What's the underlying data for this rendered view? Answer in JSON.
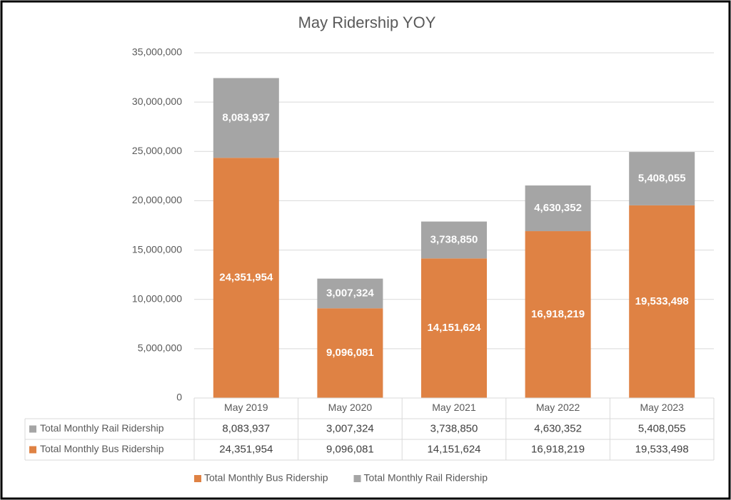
{
  "chart_data": {
    "type": "stacked_bar",
    "title": "May Ridership YOY",
    "categories": [
      "May 2019",
      "May 2020",
      "May 2021",
      "May 2022",
      "May 2023"
    ],
    "series": [
      {
        "name": "Total Monthly Bus Ridership",
        "color": "#df8244",
        "values": [
          24351954,
          9096081,
          14151624,
          16918219,
          19533498
        ],
        "value_labels": [
          "24,351,954",
          "9,096,081",
          "14,151,624",
          "16,918,219",
          "19,533,498"
        ]
      },
      {
        "name": "Total Monthly Rail Ridership",
        "color": "#a5a5a5",
        "values": [
          8083937,
          3007324,
          3738850,
          4630352,
          5408055
        ],
        "value_labels": [
          "8,083,937",
          "3,007,324",
          "3,738,850",
          "4,630,352",
          "5,408,055"
        ]
      }
    ],
    "ylim": [
      0,
      35000000
    ],
    "yticks": [
      0,
      {
        "value": 5000000,
        "label": "5,000,000"
      },
      {
        "value": 10000000,
        "label": "10,000,000"
      },
      {
        "value": 15000000,
        "label": "15,000,000"
      },
      {
        "value": 20000000,
        "label": "20,000,000"
      },
      {
        "value": 25000000,
        "label": "25,000,000"
      },
      {
        "value": 30000000,
        "label": "30,000,000"
      },
      {
        "value": 35000000,
        "label": "35,000,000"
      }
    ],
    "grid": true,
    "legend": "bottom",
    "data_table": true
  }
}
